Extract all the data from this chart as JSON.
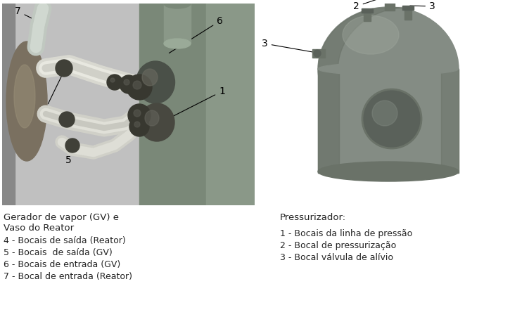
{
  "bg_color": "#ffffff",
  "fig_width": 7.52,
  "fig_height": 4.78,
  "dpi": 100,
  "left_caption_title_line1": "Gerador de vapor (GV) e",
  "left_caption_title_line2": "Vaso do Reator",
  "left_caption_items": [
    "4 - Bocais de saída (Reator)",
    "5 - Bocais  de saída (GV)",
    "6 - Bocais de entrada (GV)",
    "7 - Bocal de entrada (Reator)"
  ],
  "right_caption_title": "Pressurizador:",
  "right_caption_items": [
    "1 - Bocais da linha de pressão",
    "2 - Bocal de pressurização",
    "3 - Bocal válvula de alívio"
  ],
  "text_color": "#222222",
  "font_size_title": 9.5,
  "font_size_items": 9.0,
  "left_bg_gray": "#c2c2c2",
  "left_bg_dark": "#6a7a6a",
  "right_bg": "#ffffff"
}
